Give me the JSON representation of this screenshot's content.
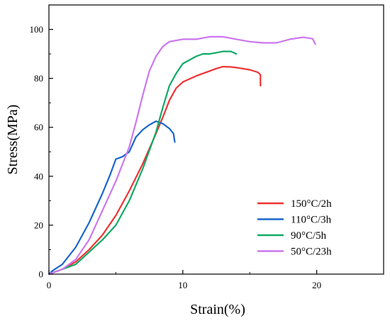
{
  "chart_data": {
    "type": "line",
    "title": "",
    "xlabel": "Strain(%)",
    "ylabel": "Stress(MPa)",
    "xlim": [
      0,
      25
    ],
    "ylim": [
      0,
      110
    ],
    "x_ticks": [
      0,
      10,
      20
    ],
    "y_ticks": [
      0,
      20,
      40,
      60,
      80,
      100
    ],
    "grid": false,
    "legend_position": "bottom-right",
    "series": [
      {
        "name": "150°C/2h",
        "color": "#ee3333",
        "points": [
          [
            0,
            0
          ],
          [
            1,
            2
          ],
          [
            2,
            5
          ],
          [
            3,
            10
          ],
          [
            4,
            16
          ],
          [
            5,
            24
          ],
          [
            6,
            34
          ],
          [
            7,
            45
          ],
          [
            7.8,
            55
          ],
          [
            8.5,
            64
          ],
          [
            9,
            71
          ],
          [
            9.5,
            76
          ],
          [
            10,
            78.5
          ],
          [
            11,
            81
          ],
          [
            12,
            83
          ],
          [
            12.5,
            84
          ],
          [
            13,
            84.8
          ],
          [
            13.5,
            84.7
          ],
          [
            14,
            84.4
          ],
          [
            15,
            83.5
          ],
          [
            15.6,
            82.5
          ],
          [
            15.8,
            81.5
          ],
          [
            15.8,
            77
          ]
        ]
      },
      {
        "name": "110°C/3h",
        "color": "#1a66cc",
        "points": [
          [
            0,
            0
          ],
          [
            0.3,
            1.5
          ],
          [
            1,
            4
          ],
          [
            2,
            11
          ],
          [
            3,
            21
          ],
          [
            4,
            33
          ],
          [
            4.6,
            41
          ],
          [
            5,
            47
          ],
          [
            5.5,
            48
          ],
          [
            6,
            50
          ],
          [
            6.5,
            56
          ],
          [
            7,
            59
          ],
          [
            7.5,
            61
          ],
          [
            8,
            62.5
          ],
          [
            8.5,
            61.5
          ],
          [
            9,
            59.5
          ],
          [
            9.3,
            57.5
          ],
          [
            9.4,
            54
          ]
        ]
      },
      {
        "name": "90°C/5h",
        "color": "#11aa66",
        "points": [
          [
            0,
            0
          ],
          [
            1,
            2
          ],
          [
            2,
            4
          ],
          [
            3,
            9
          ],
          [
            4,
            14
          ],
          [
            5,
            20
          ],
          [
            6,
            30
          ],
          [
            7,
            43
          ],
          [
            8,
            58
          ],
          [
            8.5,
            68
          ],
          [
            9,
            77
          ],
          [
            9.5,
            82
          ],
          [
            10,
            86
          ],
          [
            11,
            89
          ],
          [
            11.5,
            90
          ],
          [
            12,
            90
          ],
          [
            12.5,
            90.5
          ],
          [
            13,
            91
          ],
          [
            13.6,
            91
          ],
          [
            14,
            90
          ]
        ]
      },
      {
        "name": "50°C/23h",
        "color": "#cc77ee",
        "points": [
          [
            0,
            0
          ],
          [
            1,
            2
          ],
          [
            2,
            6
          ],
          [
            3,
            14
          ],
          [
            4,
            26
          ],
          [
            5,
            38
          ],
          [
            6,
            52
          ],
          [
            6.5,
            62
          ],
          [
            7,
            73
          ],
          [
            7.5,
            83
          ],
          [
            8,
            89
          ],
          [
            8.5,
            93
          ],
          [
            9,
            95
          ],
          [
            10,
            96
          ],
          [
            11,
            96
          ],
          [
            12,
            97
          ],
          [
            13,
            97
          ],
          [
            14,
            96
          ],
          [
            15,
            95
          ],
          [
            16,
            94.5
          ],
          [
            17,
            94.5
          ],
          [
            18,
            96
          ],
          [
            19,
            96.8
          ],
          [
            19.7,
            96.2
          ],
          [
            19.9,
            94
          ]
        ]
      }
    ]
  }
}
